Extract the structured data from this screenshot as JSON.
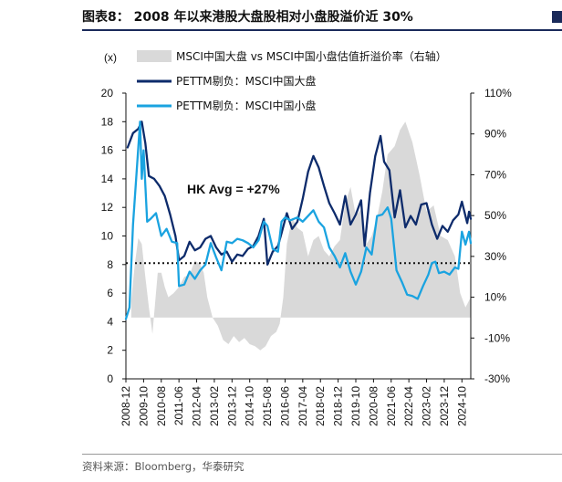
{
  "title": "图表8：  2008 年以来港股大盘股相对小盘股溢价近 30%",
  "source": "资料来源：Bloomberg，华泰研究",
  "colors": {
    "premium_area": "#d9d9d9",
    "large_cap": "#0d2b6b",
    "small_cap": "#1aa3e0",
    "avg_line": "#111111"
  },
  "chart_data": {
    "type": "line",
    "left_axis_unit": "(x)",
    "left_ylim": [
      0,
      20
    ],
    "left_ticks": [
      0,
      2,
      4,
      6,
      8,
      10,
      12,
      14,
      16,
      18,
      20
    ],
    "right_ylim": [
      -0.3,
      1.1
    ],
    "right_ticks": [
      "-30%",
      "-10%",
      "10%",
      "30%",
      "50%",
      "70%",
      "90%",
      "110%"
    ],
    "right_tick_values": [
      -0.3,
      -0.1,
      0.1,
      0.3,
      0.5,
      0.7,
      0.9,
      1.1
    ],
    "xlim": [
      "2008-12",
      "2025-03"
    ],
    "x_ticks": [
      "2008-12",
      "2009-10",
      "2010-08",
      "2011-06",
      "2012-04",
      "2013-02",
      "2013-12",
      "2014-10",
      "2015-08",
      "2016-06",
      "2017-04",
      "2018-02",
      "2018-12",
      "2019-10",
      "2020-08",
      "2021-06",
      "2022-04",
      "2023-02",
      "2023-12",
      "2024-10"
    ],
    "annotation": {
      "text": "HK Avg = +27%",
      "value": 8.1
    },
    "legend": [
      "MSCI中国大盘 vs MSCI中国小盘估值折溢价率（右轴）",
      "PETTM剔负：MSCI中国大盘",
      "PETTM剔负：MSCI中国小盘"
    ],
    "series": [
      {
        "name": "MSCI中国大盘 vs MSCI中国小盘估值折溢价率（右轴）",
        "axis": "right",
        "kind": "area",
        "points": [
          [
            "2009-03",
            0.08
          ],
          [
            "2009-05",
            0.26
          ],
          [
            "2009-07",
            0.39
          ],
          [
            "2009-09",
            0.36
          ],
          [
            "2009-11",
            0.2
          ],
          [
            "2010-01",
            0.05
          ],
          [
            "2010-03",
            -0.08
          ],
          [
            "2010-04",
            0.02
          ],
          [
            "2010-06",
            0.22
          ],
          [
            "2010-08",
            0.22
          ],
          [
            "2010-10",
            0.15
          ],
          [
            "2010-12",
            0.1
          ],
          [
            "2011-03",
            0.12
          ],
          [
            "2011-06",
            0.15
          ],
          [
            "2011-09",
            0.2
          ],
          [
            "2011-12",
            0.21
          ],
          [
            "2012-03",
            0.28
          ],
          [
            "2012-06",
            0.26
          ],
          [
            "2012-08",
            0.22
          ],
          [
            "2012-10",
            0.1
          ],
          [
            "2013-01",
            0.0
          ],
          [
            "2013-04",
            -0.04
          ],
          [
            "2013-07",
            -0.11
          ],
          [
            "2013-10",
            -0.13
          ],
          [
            "2014-01",
            -0.09
          ],
          [
            "2014-04",
            -0.12
          ],
          [
            "2014-07",
            -0.1
          ],
          [
            "2014-10",
            -0.13
          ],
          [
            "2015-01",
            -0.14
          ],
          [
            "2015-04",
            -0.16
          ],
          [
            "2015-07",
            -0.14
          ],
          [
            "2015-10",
            -0.09
          ],
          [
            "2016-01",
            -0.07
          ],
          [
            "2016-03",
            -0.03
          ],
          [
            "2016-05",
            0.1
          ],
          [
            "2016-07",
            0.36
          ],
          [
            "2016-10",
            0.49
          ],
          [
            "2017-01",
            0.44
          ],
          [
            "2017-04",
            0.42
          ],
          [
            "2017-07",
            0.3
          ],
          [
            "2017-10",
            0.38
          ],
          [
            "2018-01",
            0.4
          ],
          [
            "2018-04",
            0.33
          ],
          [
            "2018-07",
            0.3
          ],
          [
            "2018-10",
            0.35
          ],
          [
            "2019-01",
            0.38
          ],
          [
            "2019-04",
            0.56
          ],
          [
            "2019-07",
            0.64
          ],
          [
            "2019-10",
            0.5
          ],
          [
            "2020-01",
            0.53
          ],
          [
            "2020-04",
            0.36
          ],
          [
            "2020-07",
            0.4
          ],
          [
            "2020-10",
            0.49
          ],
          [
            "2021-01",
            0.62
          ],
          [
            "2021-04",
            0.8
          ],
          [
            "2021-08",
            0.84
          ],
          [
            "2021-11",
            0.92
          ],
          [
            "2022-02",
            0.96
          ],
          [
            "2022-06",
            0.86
          ],
          [
            "2022-10",
            0.7
          ],
          [
            "2023-02",
            0.52
          ],
          [
            "2023-06",
            0.55
          ],
          [
            "2023-10",
            0.4
          ],
          [
            "2024-02",
            0.38
          ],
          [
            "2024-06",
            0.3
          ],
          [
            "2024-09",
            0.12
          ],
          [
            "2024-12",
            0.05
          ],
          [
            "2025-03",
            0.1
          ]
        ]
      },
      {
        "name": "PETTM剔负：MSCI中国大盘",
        "axis": "left",
        "kind": "line",
        "points": [
          [
            "2009-01",
            16.2
          ],
          [
            "2009-04",
            17.2
          ],
          [
            "2009-07",
            17.5
          ],
          [
            "2009-09",
            18.0
          ],
          [
            "2009-11",
            16.5
          ],
          [
            "2010-01",
            14.2
          ],
          [
            "2010-04",
            14.0
          ],
          [
            "2010-07",
            13.5
          ],
          [
            "2010-10",
            12.8
          ],
          [
            "2011-01",
            11.5
          ],
          [
            "2011-04",
            10.0
          ],
          [
            "2011-06",
            8.3
          ],
          [
            "2011-09",
            8.6
          ],
          [
            "2011-12",
            9.6
          ],
          [
            "2012-03",
            9.0
          ],
          [
            "2012-06",
            9.2
          ],
          [
            "2012-09",
            9.8
          ],
          [
            "2012-12",
            10.0
          ],
          [
            "2013-03",
            9.2
          ],
          [
            "2013-06",
            8.7
          ],
          [
            "2013-09",
            8.9
          ],
          [
            "2013-12",
            8.2
          ],
          [
            "2014-03",
            8.7
          ],
          [
            "2014-06",
            8.6
          ],
          [
            "2014-09",
            9.1
          ],
          [
            "2014-12",
            9.3
          ],
          [
            "2015-03",
            10.0
          ],
          [
            "2015-06",
            11.2
          ],
          [
            "2015-08",
            8.0
          ],
          [
            "2015-11",
            8.9
          ],
          [
            "2016-02",
            9.3
          ],
          [
            "2016-04",
            10.2
          ],
          [
            "2016-07",
            11.6
          ],
          [
            "2016-10",
            10.5
          ],
          [
            "2017-01",
            11.0
          ],
          [
            "2017-04",
            12.6
          ],
          [
            "2017-07",
            14.5
          ],
          [
            "2017-10",
            15.6
          ],
          [
            "2018-01",
            14.8
          ],
          [
            "2018-04",
            13.5
          ],
          [
            "2018-07",
            12.3
          ],
          [
            "2018-10",
            11.6
          ],
          [
            "2019-01",
            10.8
          ],
          [
            "2019-04",
            12.8
          ],
          [
            "2019-07",
            10.8
          ],
          [
            "2019-10",
            11.5
          ],
          [
            "2020-01",
            12.5
          ],
          [
            "2020-03",
            9.3
          ],
          [
            "2020-06",
            13.0
          ],
          [
            "2020-09",
            15.6
          ],
          [
            "2020-12",
            17.0
          ],
          [
            "2021-02",
            15.2
          ],
          [
            "2021-05",
            14.6
          ],
          [
            "2021-08",
            11.3
          ],
          [
            "2021-11",
            13.2
          ],
          [
            "2022-02",
            10.6
          ],
          [
            "2022-05",
            11.4
          ],
          [
            "2022-08",
            10.8
          ],
          [
            "2022-11",
            12.2
          ],
          [
            "2023-02",
            12.3
          ],
          [
            "2023-05",
            10.8
          ],
          [
            "2023-08",
            9.8
          ],
          [
            "2023-11",
            10.7
          ],
          [
            "2024-02",
            10.3
          ],
          [
            "2024-05",
            11.1
          ],
          [
            "2024-08",
            11.5
          ],
          [
            "2024-10",
            12.4
          ],
          [
            "2025-01",
            10.9
          ],
          [
            "2025-02",
            11.7
          ],
          [
            "2025-03",
            11.2
          ]
        ]
      },
      {
        "name": "PETTM剔负：MSCI中国小盘",
        "axis": "left",
        "kind": "line",
        "points": [
          [
            "2008-12",
            4.2
          ],
          [
            "2009-02",
            5.0
          ],
          [
            "2009-04",
            10.8
          ],
          [
            "2009-07",
            16.2
          ],
          [
            "2009-08",
            18.0
          ],
          [
            "2009-09",
            14.0
          ],
          [
            "2009-10",
            16.0
          ],
          [
            "2009-12",
            11.0
          ],
          [
            "2010-02",
            11.2
          ],
          [
            "2010-05",
            11.6
          ],
          [
            "2010-08",
            10.0
          ],
          [
            "2010-11",
            10.5
          ],
          [
            "2011-02",
            9.6
          ],
          [
            "2011-05",
            9.5
          ],
          [
            "2011-06",
            6.5
          ],
          [
            "2011-09",
            6.6
          ],
          [
            "2011-12",
            7.5
          ],
          [
            "2012-03",
            7.0
          ],
          [
            "2012-06",
            7.6
          ],
          [
            "2012-09",
            8.0
          ],
          [
            "2012-12",
            9.5
          ],
          [
            "2013-03",
            8.5
          ],
          [
            "2013-06",
            7.6
          ],
          [
            "2013-09",
            9.6
          ],
          [
            "2013-12",
            9.5
          ],
          [
            "2014-03",
            9.8
          ],
          [
            "2014-06",
            9.7
          ],
          [
            "2014-09",
            9.5
          ],
          [
            "2014-12",
            9.2
          ],
          [
            "2015-03",
            9.7
          ],
          [
            "2015-06",
            11.0
          ],
          [
            "2015-08",
            10.7
          ],
          [
            "2015-11",
            9.1
          ],
          [
            "2016-02",
            8.9
          ],
          [
            "2016-04",
            11.0
          ],
          [
            "2016-06",
            11.3
          ],
          [
            "2016-09",
            11.1
          ],
          [
            "2017-01",
            11.3
          ],
          [
            "2017-04",
            11.0
          ],
          [
            "2017-07",
            11.4
          ],
          [
            "2017-10",
            11.8
          ],
          [
            "2018-01",
            11.0
          ],
          [
            "2018-04",
            10.6
          ],
          [
            "2018-07",
            9.2
          ],
          [
            "2018-10",
            8.6
          ],
          [
            "2019-01",
            7.8
          ],
          [
            "2019-04",
            8.8
          ],
          [
            "2019-07",
            7.5
          ],
          [
            "2019-10",
            6.6
          ],
          [
            "2020-01",
            7.5
          ],
          [
            "2020-04",
            9.2
          ],
          [
            "2020-07",
            8.7
          ],
          [
            "2020-10",
            11.4
          ],
          [
            "2021-01",
            11.5
          ],
          [
            "2021-04",
            12.0
          ],
          [
            "2021-06",
            11.2
          ],
          [
            "2021-09",
            7.6
          ],
          [
            "2021-12",
            6.8
          ],
          [
            "2022-03",
            5.9
          ],
          [
            "2022-06",
            5.8
          ],
          [
            "2022-09",
            5.6
          ],
          [
            "2022-12",
            6.5
          ],
          [
            "2023-03",
            7.3
          ],
          [
            "2023-05",
            8.1
          ],
          [
            "2023-07",
            8.2
          ],
          [
            "2023-09",
            7.4
          ],
          [
            "2023-12",
            7.5
          ],
          [
            "2024-03",
            7.3
          ],
          [
            "2024-06",
            7.8
          ],
          [
            "2024-08",
            7.7
          ],
          [
            "2024-10",
            10.3
          ],
          [
            "2024-12",
            9.4
          ],
          [
            "2025-02",
            10.3
          ],
          [
            "2025-03",
            9.5
          ]
        ]
      }
    ]
  }
}
